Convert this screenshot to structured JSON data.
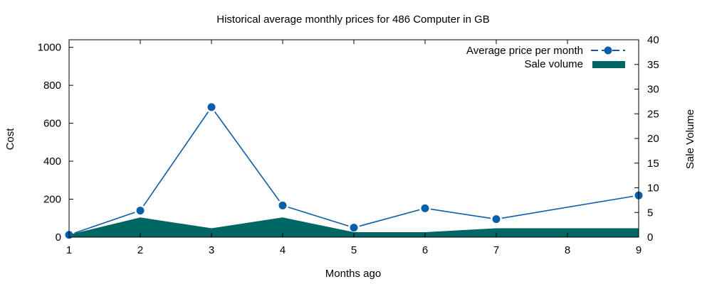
{
  "chart_data": {
    "type": "line",
    "title": "Historical average monthly prices for 486 Computer in GB",
    "xlabel": "Months ago",
    "ylabel": "Cost",
    "y2label": "Sale Volume",
    "x": [
      1,
      2,
      3,
      4,
      5,
      6,
      7,
      8,
      9
    ],
    "xlim": [
      1,
      9
    ],
    "ylim": [
      0,
      1040
    ],
    "y2lim": [
      0,
      40
    ],
    "yticks": [
      0,
      200,
      400,
      600,
      800,
      1000
    ],
    "y2ticks": [
      0,
      5,
      10,
      15,
      20,
      25,
      30,
      35,
      40
    ],
    "grid": false,
    "legend_position": "top-right",
    "series": [
      {
        "name": "Average price per month",
        "kind": "line-points",
        "axis": "left",
        "color": "#0b5ea8",
        "points": [
          {
            "x": 1,
            "y": 12
          },
          {
            "x": 2,
            "y": 140
          },
          {
            "x": 3,
            "y": 685
          },
          {
            "x": 4,
            "y": 167
          },
          {
            "x": 5,
            "y": 50
          },
          {
            "x": 6,
            "y": 152
          },
          {
            "x": 7,
            "y": 95
          },
          {
            "x": 9,
            "y": 220
          }
        ]
      },
      {
        "name": "Sale volume",
        "kind": "area",
        "axis": "right",
        "color": "#006565",
        "points": [
          {
            "x": 1,
            "y": 0.5
          },
          {
            "x": 2,
            "y": 4
          },
          {
            "x": 3,
            "y": 1.8
          },
          {
            "x": 4,
            "y": 4
          },
          {
            "x": 5,
            "y": 1
          },
          {
            "x": 6,
            "y": 1
          },
          {
            "x": 7,
            "y": 1.8
          },
          {
            "x": 8,
            "y": 1.8
          },
          {
            "x": 9,
            "y": 1.8
          }
        ]
      }
    ]
  }
}
